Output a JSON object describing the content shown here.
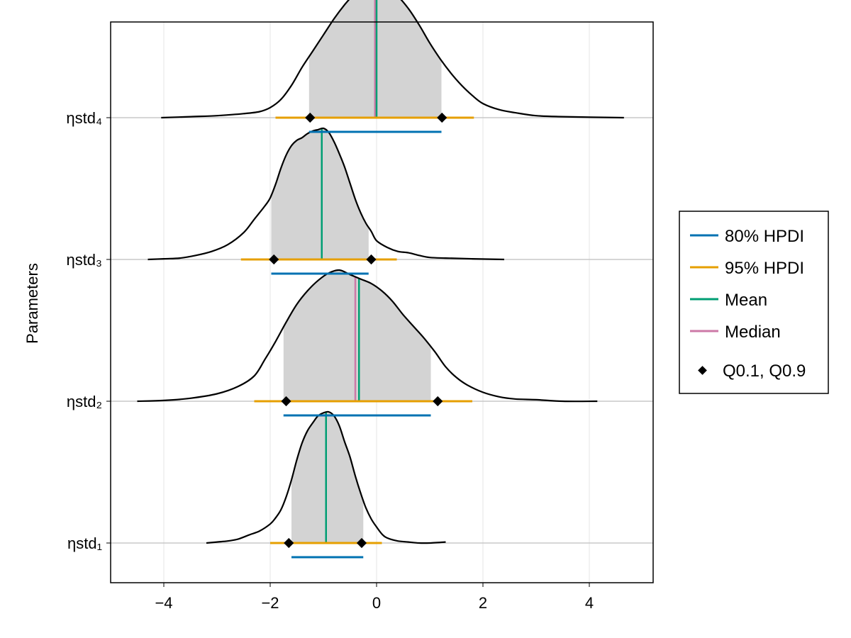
{
  "chart_data": {
    "type": "ridgeline-density",
    "ylabel": "Parameters",
    "xlabel": "",
    "xlim": [
      -5.0,
      5.2
    ],
    "x_ticks": [
      -4,
      -2,
      0,
      2,
      4
    ],
    "x_tick_labels": [
      "−4",
      "−2",
      "0",
      "2",
      "4"
    ],
    "grid": true,
    "legend_position": "right",
    "colors": {
      "hpdi80": "#0072b2",
      "hpdi95": "#e69f00",
      "mean": "#009e73",
      "median": "#cc79a7",
      "quantile": "#000000",
      "fill": "#d3d3d3",
      "curve": "#000000",
      "grid": "#e6e6e6",
      "baseline": "#c8c8c8"
    },
    "legend": {
      "hpdi80": "80% HPDI",
      "hpdi95": "95% HPDI",
      "mean": "Mean",
      "median": "Median",
      "quantile": "Q0.1, Q0.9"
    },
    "parameters": [
      {
        "name": "ηstd₁",
        "hpdi80": [
          -1.6,
          -0.25
        ],
        "hpdi95": [
          -2.0,
          0.1
        ],
        "mean": -0.95,
        "median": -0.95,
        "q10": -1.65,
        "q90": -0.28,
        "peak": 1.31,
        "density": [
          [
            -3.2,
            0
          ],
          [
            -3.0,
            0.01
          ],
          [
            -2.8,
            0.02
          ],
          [
            -2.6,
            0.04
          ],
          [
            -2.4,
            0.08
          ],
          [
            -2.2,
            0.12
          ],
          [
            -2.0,
            0.19
          ],
          [
            -1.9,
            0.25
          ],
          [
            -1.8,
            0.33
          ],
          [
            -1.7,
            0.46
          ],
          [
            -1.6,
            0.63
          ],
          [
            -1.5,
            0.83
          ],
          [
            -1.4,
            1.0
          ],
          [
            -1.3,
            1.12
          ],
          [
            -1.2,
            1.2
          ],
          [
            -1.1,
            1.27
          ],
          [
            -1.0,
            1.3
          ],
          [
            -0.9,
            1.31
          ],
          [
            -0.8,
            1.27
          ],
          [
            -0.7,
            1.17
          ],
          [
            -0.6,
            1.01
          ],
          [
            -0.5,
            0.86
          ],
          [
            -0.4,
            0.67
          ],
          [
            -0.3,
            0.5
          ],
          [
            -0.2,
            0.35
          ],
          [
            -0.1,
            0.24
          ],
          [
            0.0,
            0.16
          ],
          [
            0.1,
            0.09
          ],
          [
            0.2,
            0.05
          ],
          [
            0.4,
            0.02
          ],
          [
            0.6,
            0.01
          ],
          [
            0.8,
            0.0
          ],
          [
            1.0,
            0.0
          ],
          [
            1.3,
            0.01
          ]
        ]
      },
      {
        "name": "ηstd₂",
        "hpdi80": [
          -1.75,
          1.02
        ],
        "hpdi95": [
          -2.3,
          1.8
        ],
        "mean": -0.33,
        "median": -0.4,
        "q10": -1.7,
        "q90": 1.15,
        "peak": 0.88,
        "density": [
          [
            -4.5,
            0
          ],
          [
            -4.0,
            0.005
          ],
          [
            -3.5,
            0.02
          ],
          [
            -3.0,
            0.05
          ],
          [
            -2.6,
            0.1
          ],
          [
            -2.3,
            0.17
          ],
          [
            -2.1,
            0.28
          ],
          [
            -1.9,
            0.4
          ],
          [
            -1.7,
            0.53
          ],
          [
            -1.5,
            0.65
          ],
          [
            -1.3,
            0.74
          ],
          [
            -1.1,
            0.81
          ],
          [
            -0.9,
            0.86
          ],
          [
            -0.7,
            0.88
          ],
          [
            -0.5,
            0.85
          ],
          [
            -0.3,
            0.82
          ],
          [
            -0.1,
            0.79
          ],
          [
            0.1,
            0.74
          ],
          [
            0.3,
            0.67
          ],
          [
            0.5,
            0.58
          ],
          [
            0.7,
            0.5
          ],
          [
            0.9,
            0.42
          ],
          [
            1.1,
            0.33
          ],
          [
            1.3,
            0.23
          ],
          [
            1.5,
            0.16
          ],
          [
            1.7,
            0.11
          ],
          [
            2.0,
            0.06
          ],
          [
            2.3,
            0.03
          ],
          [
            2.6,
            0.015
          ],
          [
            3.0,
            0.01
          ],
          [
            3.5,
            0.0
          ],
          [
            4.15,
            0.0
          ]
        ]
      },
      {
        "name": "ηstd₃",
        "hpdi80": [
          -1.98,
          -0.15
        ],
        "hpdi95": [
          -2.55,
          0.38
        ],
        "mean": -1.03,
        "median": -1.03,
        "q10": -1.93,
        "q90": -0.1,
        "peak": 0.98,
        "density": [
          [
            -4.3,
            0
          ],
          [
            -4.0,
            0.005
          ],
          [
            -3.7,
            0.01
          ],
          [
            -3.4,
            0.03
          ],
          [
            -3.1,
            0.06
          ],
          [
            -2.8,
            0.11
          ],
          [
            -2.5,
            0.2
          ],
          [
            -2.3,
            0.3
          ],
          [
            -2.1,
            0.4
          ],
          [
            -2.0,
            0.46
          ],
          [
            -1.9,
            0.56
          ],
          [
            -1.8,
            0.68
          ],
          [
            -1.7,
            0.78
          ],
          [
            -1.6,
            0.85
          ],
          [
            -1.5,
            0.89
          ],
          [
            -1.4,
            0.91
          ],
          [
            -1.3,
            0.94
          ],
          [
            -1.2,
            0.96
          ],
          [
            -1.1,
            0.97
          ],
          [
            -1.0,
            0.98
          ],
          [
            -0.9,
            0.95
          ],
          [
            -0.8,
            0.88
          ],
          [
            -0.7,
            0.79
          ],
          [
            -0.6,
            0.69
          ],
          [
            -0.5,
            0.57
          ],
          [
            -0.4,
            0.45
          ],
          [
            -0.3,
            0.35
          ],
          [
            -0.2,
            0.27
          ],
          [
            -0.1,
            0.21
          ],
          [
            0.0,
            0.14
          ],
          [
            0.2,
            0.09
          ],
          [
            0.4,
            0.06
          ],
          [
            0.6,
            0.05
          ],
          [
            0.8,
            0.03
          ],
          [
            1.0,
            0.015
          ],
          [
            1.3,
            0.01
          ],
          [
            1.8,
            0.005
          ],
          [
            2.4,
            0.0
          ]
        ]
      },
      {
        "name": "ηstd₄",
        "hpdi80": [
          -1.27,
          1.22
        ],
        "hpdi95": [
          -1.9,
          1.83
        ],
        "mean": 0.0,
        "median": -0.03,
        "q10": -1.25,
        "q90": 1.23,
        "peak": 0.65,
        "density": [
          [
            -4.05,
            0
          ],
          [
            -3.5,
            0.005
          ],
          [
            -3.0,
            0.01
          ],
          [
            -2.5,
            0.02
          ],
          [
            -2.2,
            0.03
          ],
          [
            -2.0,
            0.05
          ],
          [
            -1.8,
            0.09
          ],
          [
            -1.6,
            0.16
          ],
          [
            -1.4,
            0.25
          ],
          [
            -1.2,
            0.33
          ],
          [
            -1.0,
            0.41
          ],
          [
            -0.8,
            0.49
          ],
          [
            -0.6,
            0.56
          ],
          [
            -0.4,
            0.62
          ],
          [
            -0.3,
            0.65
          ],
          [
            -0.2,
            0.64
          ],
          [
            0.0,
            0.63
          ],
          [
            0.2,
            0.62
          ],
          [
            0.4,
            0.6
          ],
          [
            0.6,
            0.54
          ],
          [
            0.8,
            0.46
          ],
          [
            1.0,
            0.37
          ],
          [
            1.2,
            0.29
          ],
          [
            1.4,
            0.22
          ],
          [
            1.6,
            0.16
          ],
          [
            1.8,
            0.11
          ],
          [
            2.0,
            0.07
          ],
          [
            2.3,
            0.04
          ],
          [
            2.6,
            0.025
          ],
          [
            3.0,
            0.01
          ],
          [
            3.5,
            0.005
          ],
          [
            4.65,
            0.0
          ]
        ]
      }
    ]
  }
}
